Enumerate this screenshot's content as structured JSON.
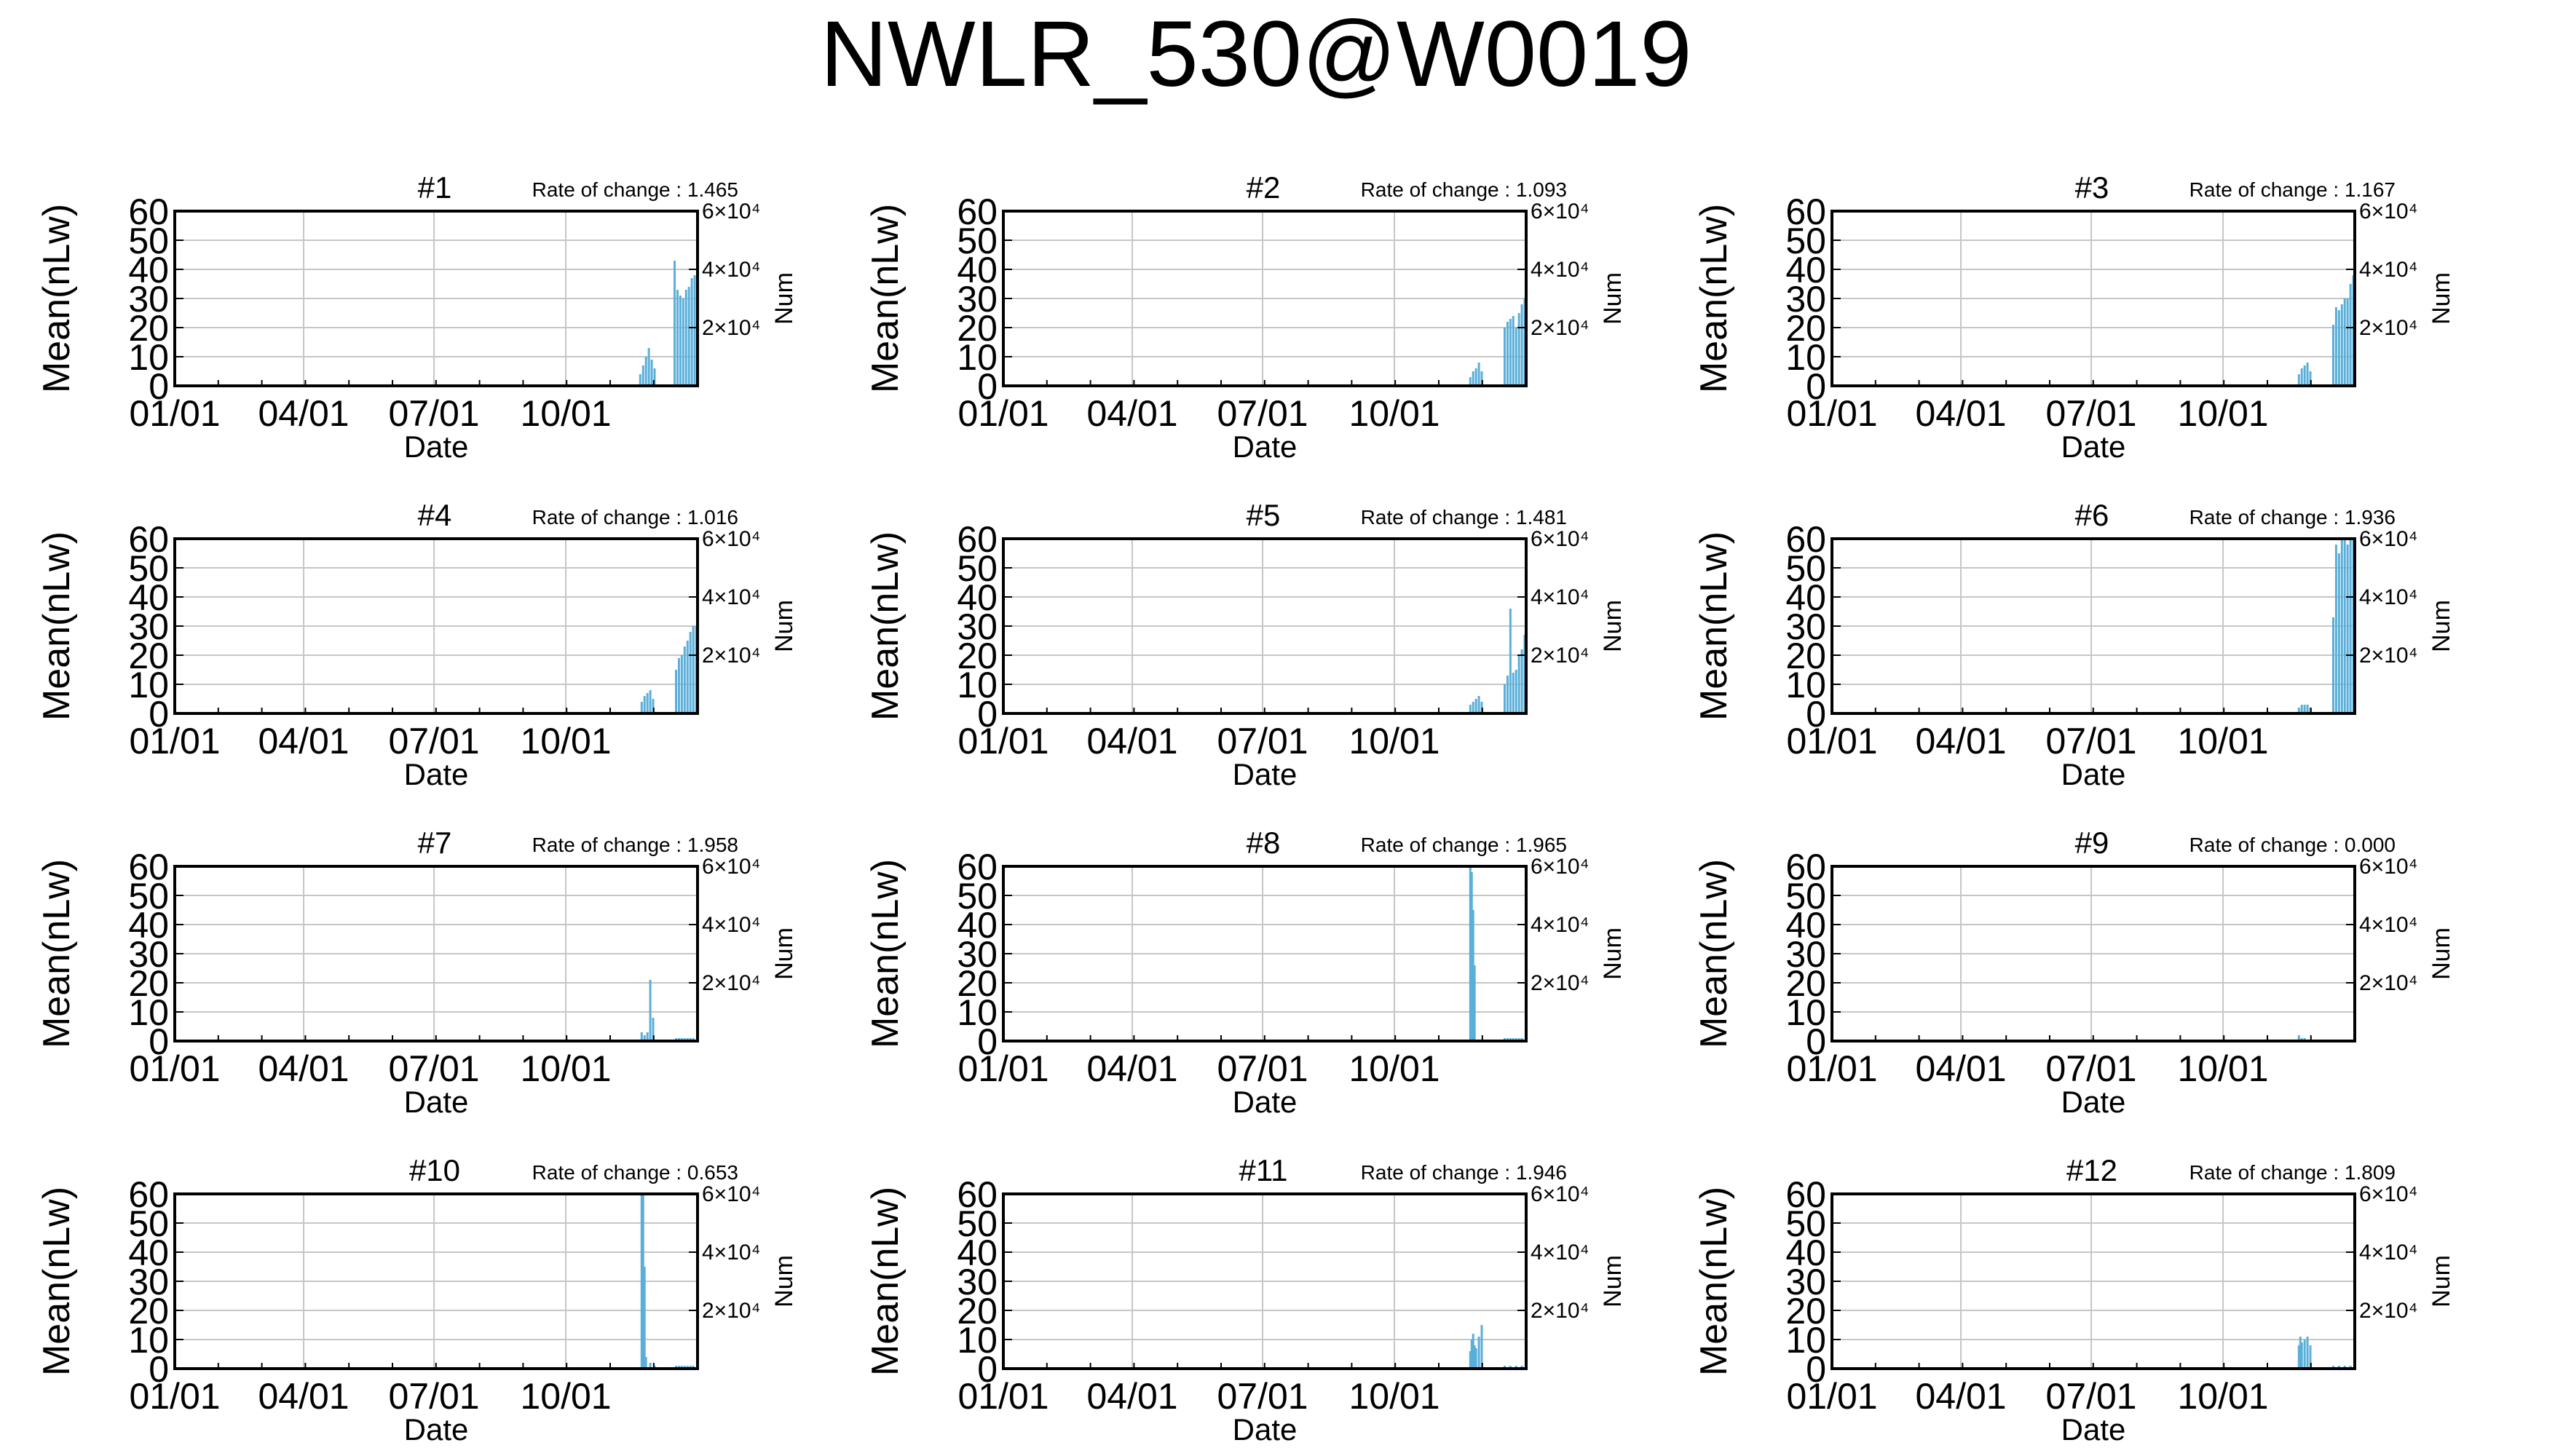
{
  "figure": {
    "title": "NWLR_530@W0019"
  },
  "panel_labels": {
    "date_ticks": [
      "01/01",
      "04/01",
      "07/01",
      "10/01"
    ],
    "y_ticks": [
      "0",
      "10",
      "20",
      "30",
      "40",
      "50",
      "60"
    ],
    "right_ticks": [
      "2×10⁴",
      "4×10⁴",
      "6×10⁴"
    ],
    "xlabel": "Date",
    "ylabel": "Mean(nLw)",
    "y2label": "Num",
    "rate_prefix": "Rate of change : "
  },
  "colors": {
    "data": "#5aafd9",
    "grid": "#c6c6c6",
    "axis": "#000000"
  },
  "chart_data": [
    {
      "type": "bar",
      "panel": "#1",
      "rate": "1.465",
      "xlim": [
        0,
        365
      ],
      "ylim": [
        0,
        60
      ],
      "y2lim": [
        0,
        60000
      ],
      "bars": [
        [
          325,
          4
        ],
        [
          327,
          7
        ],
        [
          329,
          10
        ],
        [
          331,
          13
        ],
        [
          333,
          9
        ],
        [
          335,
          6
        ],
        [
          349,
          43
        ],
        [
          351,
          33
        ],
        [
          353,
          31
        ],
        [
          355,
          30
        ],
        [
          357,
          33
        ],
        [
          359,
          34
        ],
        [
          361,
          37
        ],
        [
          363,
          38
        ]
      ]
    },
    {
      "type": "bar",
      "panel": "#2",
      "rate": "1.093",
      "xlim": [
        0,
        365
      ],
      "ylim": [
        0,
        60
      ],
      "y2lim": [
        0,
        60000
      ],
      "bars": [
        [
          326,
          3
        ],
        [
          328,
          5
        ],
        [
          330,
          6
        ],
        [
          332,
          8
        ],
        [
          334,
          5
        ],
        [
          350,
          20
        ],
        [
          352,
          22
        ],
        [
          354,
          23
        ],
        [
          356,
          24
        ],
        [
          358,
          20
        ],
        [
          360,
          25
        ],
        [
          362,
          28
        ],
        [
          364,
          30
        ]
      ]
    },
    {
      "type": "bar",
      "panel": "#3",
      "rate": "1.167",
      "xlim": [
        0,
        365
      ],
      "ylim": [
        0,
        60
      ],
      "y2lim": [
        0,
        60000
      ],
      "bars": [
        [
          326,
          4
        ],
        [
          328,
          6
        ],
        [
          330,
          7
        ],
        [
          332,
          8
        ],
        [
          334,
          5
        ],
        [
          350,
          21
        ],
        [
          352,
          27
        ],
        [
          354,
          26
        ],
        [
          356,
          28
        ],
        [
          358,
          30
        ],
        [
          360,
          30
        ],
        [
          362,
          35
        ],
        [
          364,
          38
        ]
      ]
    },
    {
      "type": "bar",
      "panel": "#4",
      "rate": "1.016",
      "xlim": [
        0,
        365
      ],
      "ylim": [
        0,
        60
      ],
      "y2lim": [
        0,
        60000
      ],
      "bars": [
        [
          326,
          4
        ],
        [
          328,
          6
        ],
        [
          330,
          7
        ],
        [
          332,
          8
        ],
        [
          334,
          5
        ],
        [
          350,
          15
        ],
        [
          352,
          19
        ],
        [
          354,
          20
        ],
        [
          356,
          23
        ],
        [
          358,
          25
        ],
        [
          360,
          28
        ],
        [
          362,
          30
        ],
        [
          364,
          30
        ]
      ]
    },
    {
      "type": "bar",
      "panel": "#5",
      "rate": "1.481",
      "xlim": [
        0,
        365
      ],
      "ylim": [
        0,
        60
      ],
      "y2lim": [
        0,
        60000
      ],
      "bars": [
        [
          326,
          3
        ],
        [
          328,
          4
        ],
        [
          330,
          5
        ],
        [
          332,
          6
        ],
        [
          334,
          4
        ],
        [
          350,
          10
        ],
        [
          352,
          13
        ],
        [
          354,
          36
        ],
        [
          356,
          14
        ],
        [
          358,
          15
        ],
        [
          360,
          20
        ],
        [
          362,
          22
        ],
        [
          364,
          27
        ]
      ]
    },
    {
      "type": "bar",
      "panel": "#6",
      "rate": "1.936",
      "xlim": [
        0,
        365
      ],
      "ylim": [
        0,
        60
      ],
      "y2lim": [
        0,
        60000
      ],
      "bars": [
        [
          326,
          2
        ],
        [
          328,
          3
        ],
        [
          330,
          3
        ],
        [
          332,
          3
        ],
        [
          334,
          2
        ],
        [
          350,
          33
        ],
        [
          352,
          58
        ],
        [
          354,
          55
        ],
        [
          356,
          60
        ],
        [
          358,
          60
        ],
        [
          360,
          58
        ],
        [
          362,
          60
        ],
        [
          364,
          60
        ]
      ]
    },
    {
      "type": "bar",
      "panel": "#7",
      "rate": "1.958",
      "xlim": [
        0,
        365
      ],
      "ylim": [
        0,
        60
      ],
      "y2lim": [
        0,
        60000
      ],
      "bars": [
        [
          326,
          3
        ],
        [
          328,
          2
        ],
        [
          330,
          3
        ],
        [
          332,
          21
        ],
        [
          334,
          8
        ],
        [
          350,
          1
        ],
        [
          352,
          1
        ],
        [
          354,
          1
        ],
        [
          356,
          1
        ],
        [
          358,
          1
        ],
        [
          360,
          1
        ],
        [
          362,
          1
        ]
      ]
    },
    {
      "type": "bar",
      "panel": "#8",
      "rate": "1.965",
      "xlim": [
        0,
        365
      ],
      "ylim": [
        0,
        60
      ],
      "y2lim": [
        0,
        60000
      ],
      "bars": [
        [
          326,
          60
        ],
        [
          327,
          58
        ],
        [
          328,
          45
        ],
        [
          329,
          26
        ],
        [
          350,
          1
        ],
        [
          352,
          1
        ],
        [
          354,
          1
        ],
        [
          356,
          1
        ],
        [
          358,
          1
        ],
        [
          360,
          1
        ],
        [
          362,
          1
        ]
      ]
    },
    {
      "type": "bar",
      "panel": "#9",
      "rate": "0.000",
      "xlim": [
        0,
        365
      ],
      "ylim": [
        0,
        60
      ],
      "y2lim": [
        0,
        60000
      ],
      "bars": [
        [
          326,
          2
        ],
        [
          328,
          1
        ],
        [
          330,
          1
        ],
        [
          350,
          0.5
        ],
        [
          355,
          0.5
        ],
        [
          360,
          0.5
        ]
      ]
    },
    {
      "type": "bar",
      "panel": "#10",
      "rate": "0.653",
      "xlim": [
        0,
        365
      ],
      "ylim": [
        0,
        60
      ],
      "y2lim": [
        0,
        60000
      ],
      "bars": [
        [
          326,
          60
        ],
        [
          327,
          60
        ],
        [
          328,
          35
        ],
        [
          329,
          4
        ],
        [
          332,
          2
        ],
        [
          335,
          1
        ],
        [
          350,
          1
        ],
        [
          352,
          1
        ],
        [
          354,
          1
        ],
        [
          356,
          1
        ],
        [
          358,
          1
        ],
        [
          360,
          1
        ],
        [
          362,
          1
        ]
      ]
    },
    {
      "type": "bar",
      "panel": "#11",
      "rate": "1.946",
      "xlim": [
        0,
        365
      ],
      "ylim": [
        0,
        60
      ],
      "y2lim": [
        0,
        60000
      ],
      "bars": [
        [
          326,
          6
        ],
        [
          327,
          10
        ],
        [
          328,
          12
        ],
        [
          329,
          8
        ],
        [
          330,
          7
        ],
        [
          332,
          11
        ],
        [
          334,
          15
        ],
        [
          350,
          1
        ],
        [
          354,
          1
        ],
        [
          358,
          1
        ],
        [
          362,
          1
        ]
      ]
    },
    {
      "type": "bar",
      "panel": "#12",
      "rate": "1.809",
      "xlim": [
        0,
        365
      ],
      "ylim": [
        0,
        60
      ],
      "y2lim": [
        0,
        60000
      ],
      "bars": [
        [
          326,
          8
        ],
        [
          327,
          11
        ],
        [
          328,
          9
        ],
        [
          330,
          10
        ],
        [
          332,
          11
        ],
        [
          334,
          8
        ],
        [
          350,
          1
        ],
        [
          354,
          1
        ],
        [
          358,
          1
        ],
        [
          362,
          1
        ]
      ]
    }
  ]
}
